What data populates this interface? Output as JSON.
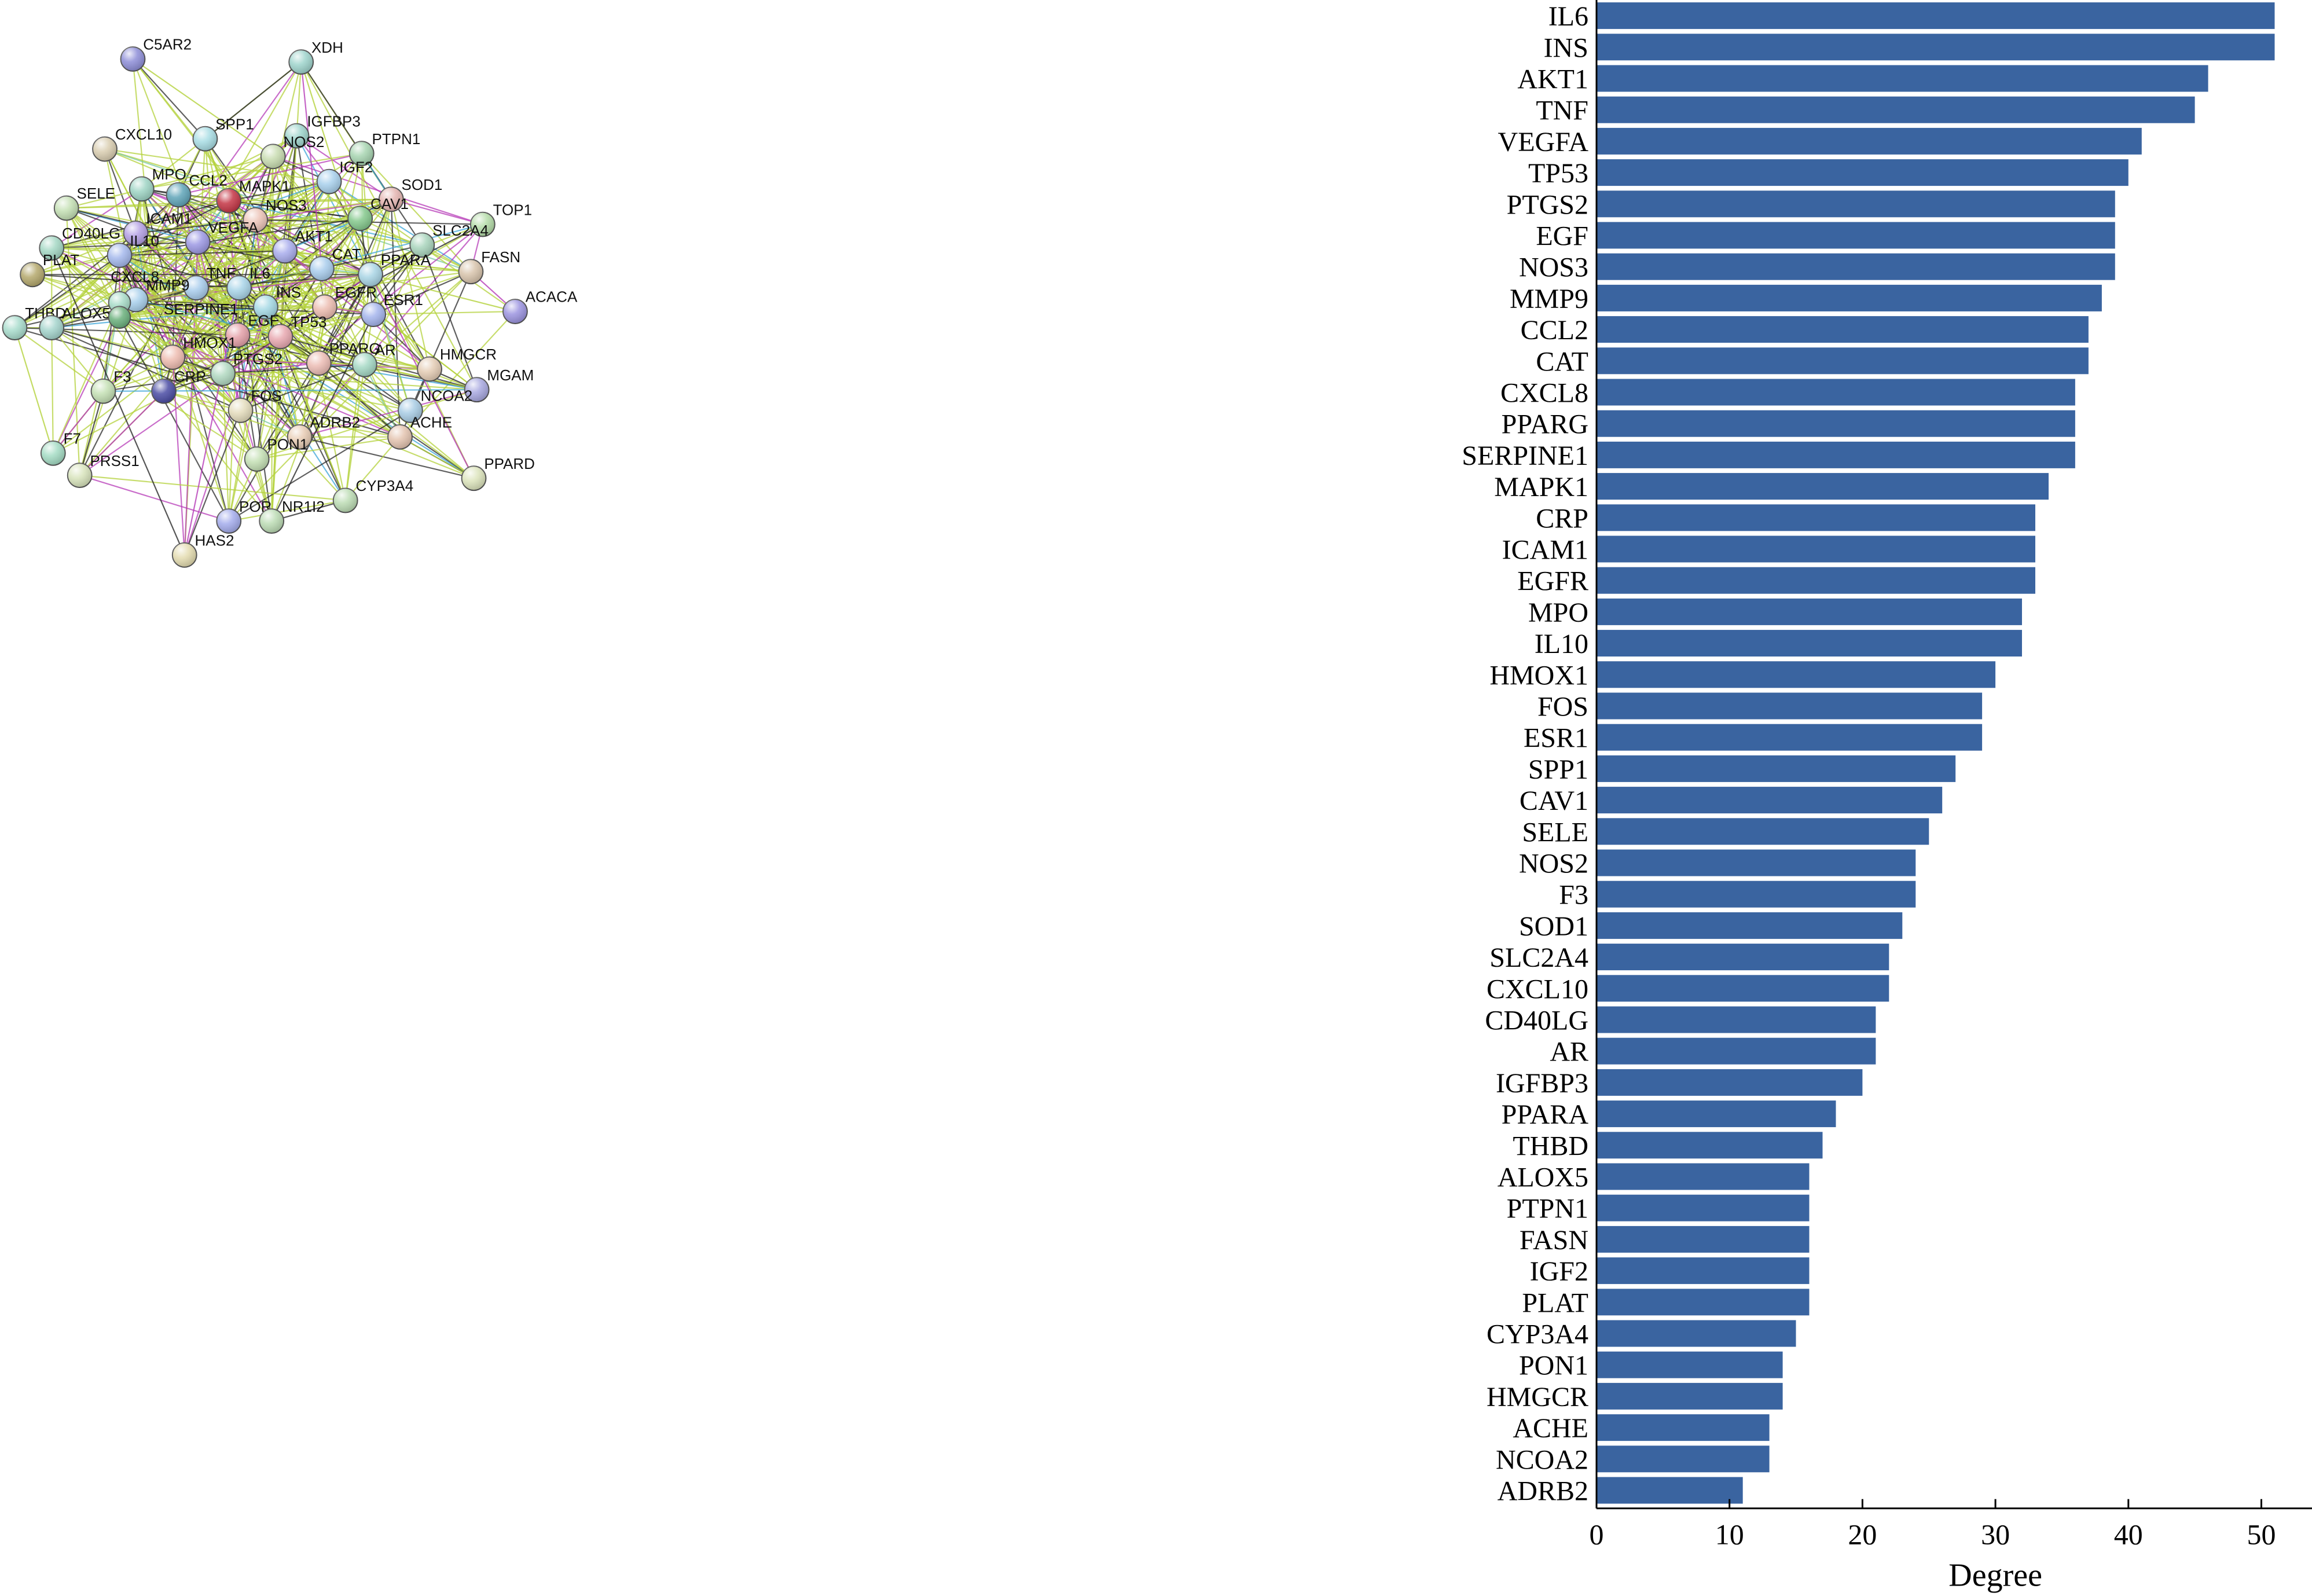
{
  "network": {
    "nodes": [
      {
        "id": "C5AR2",
        "color": "#8e8ed8"
      },
      {
        "id": "XDH",
        "color": "#9ed4cc"
      },
      {
        "id": "SPP1",
        "color": "#a8dde4"
      },
      {
        "id": "IGFBP3",
        "color": "#9ed4cc"
      },
      {
        "id": "CXCL10",
        "color": "#d9cdb0"
      },
      {
        "id": "NOS2",
        "color": "#c8dcb0"
      },
      {
        "id": "PTPN1",
        "color": "#a6d4b0"
      },
      {
        "id": "IGF2",
        "color": "#a8d0ec"
      },
      {
        "id": "MPO",
        "color": "#9ed4c4"
      },
      {
        "id": "CCL2",
        "color": "#5fa4b8"
      },
      {
        "id": "MAPK1",
        "color": "#c43545"
      },
      {
        "id": "SOD1",
        "color": "#e4b4b0"
      },
      {
        "id": "SELE",
        "color": "#c4e0b4"
      },
      {
        "id": "NOS3",
        "color": "#ecc4b8"
      },
      {
        "id": "CAV1",
        "color": "#84c88c"
      },
      {
        "id": "TOP1",
        "color": "#b4dca8"
      },
      {
        "id": "ICAM1",
        "color": "#b4a0e4"
      },
      {
        "id": "CD40LG",
        "color": "#a4d8c4"
      },
      {
        "id": "VEGFA",
        "color": "#9c98e4"
      },
      {
        "id": "IL10",
        "color": "#a4b8ec"
      },
      {
        "id": "AKT1",
        "color": "#a8acec"
      },
      {
        "id": "SLC2A4",
        "color": "#a8d4bc"
      },
      {
        "id": "PLAT",
        "color": "#b4a86c"
      },
      {
        "id": "CAT",
        "color": "#a8ccec"
      },
      {
        "id": "PPARA",
        "color": "#a8d4e4"
      },
      {
        "id": "FASN",
        "color": "#d8c4ac"
      },
      {
        "id": "TNF",
        "color": "#a8ccec"
      },
      {
        "id": "IL6",
        "color": "#a8d4e8"
      },
      {
        "id": "MMP9",
        "color": "#a8d0ec"
      },
      {
        "id": "INS",
        "color": "#a4d8e4"
      },
      {
        "id": "CXCL8",
        "color": "#a8dcc8"
      },
      {
        "id": "EGFR",
        "color": "#ecbcb0"
      },
      {
        "id": "ESR1",
        "color": "#a4b4ec"
      },
      {
        "id": "ACACA",
        "color": "#9c94e0"
      },
      {
        "id": "THBD",
        "color": "#a8dccc"
      },
      {
        "id": "ALOX5",
        "color": "#a4d4cc"
      },
      {
        "id": "SERPINE1",
        "color": "#6ab07c"
      },
      {
        "id": "EGF",
        "color": "#e4a0a8"
      },
      {
        "id": "TP53",
        "color": "#e8a8b0"
      },
      {
        "id": "HMOX1",
        "color": "#eebcb0"
      },
      {
        "id": "PPARG",
        "color": "#ecbcb4"
      },
      {
        "id": "AR",
        "color": "#a4d8c4"
      },
      {
        "id": "HMGCR",
        "color": "#e4ccb4"
      },
      {
        "id": "PTGS2",
        "color": "#b0d8c0"
      },
      {
        "id": "CRP",
        "color": "#4a4ca4"
      },
      {
        "id": "F3",
        "color": "#c4e0b4"
      },
      {
        "id": "MGAM",
        "color": "#a8a8e0"
      },
      {
        "id": "FOS",
        "color": "#e4dcbc"
      },
      {
        "id": "NCOA2",
        "color": "#a8cce4"
      },
      {
        "id": "ADRB2",
        "color": "#e8ccb4"
      },
      {
        "id": "ACHE",
        "color": "#e4c4b0"
      },
      {
        "id": "F7",
        "color": "#a4dcc4"
      },
      {
        "id": "PON1",
        "color": "#c4e0b4"
      },
      {
        "id": "PRSS1",
        "color": "#d8e4bc"
      },
      {
        "id": "PPARD",
        "color": "#dce4bc"
      },
      {
        "id": "CYP3A4",
        "color": "#bcdcb4"
      },
      {
        "id": "POR",
        "color": "#a4acec"
      },
      {
        "id": "NR1I2",
        "color": "#bcdcb4"
      },
      {
        "id": "HAS2",
        "color": "#e4dcb0"
      }
    ],
    "edge_colors": [
      "#b4d23c",
      "#2a2a2a",
      "#b73cb8",
      "#3ca6d8",
      "#7ac8a0",
      "#d8443c"
    ]
  },
  "chart_data": {
    "type": "bar",
    "orientation": "horizontal",
    "categories": [
      "IL6",
      "INS",
      "AKT1",
      "TNF",
      "VEGFA",
      "TP53",
      "PTGS2",
      "EGF",
      "NOS3",
      "MMP9",
      "CCL2",
      "CAT",
      "CXCL8",
      "PPARG",
      "SERPINE1",
      "MAPK1",
      "CRP",
      "ICAM1",
      "EGFR",
      "MPO",
      "IL10",
      "HMOX1",
      "FOS",
      "ESR1",
      "SPP1",
      "CAV1",
      "SELE",
      "NOS2",
      "F3",
      "SOD1",
      "SLC2A4",
      "CXCL10",
      "CD40LG",
      "AR",
      "IGFBP3",
      "PPARA",
      "THBD",
      "ALOX5",
      "PTPN1",
      "FASN",
      "IGF2",
      "PLAT",
      "CYP3A4",
      "PON1",
      "HMGCR",
      "ACHE",
      "NCOA2",
      "ADRB2"
    ],
    "values": [
      51,
      51,
      46,
      45,
      41,
      40,
      39,
      39,
      39,
      38,
      37,
      37,
      36,
      36,
      36,
      34,
      33,
      33,
      33,
      32,
      32,
      30,
      29,
      29,
      27,
      26,
      25,
      24,
      24,
      23,
      22,
      22,
      21,
      21,
      20,
      18,
      17,
      16,
      16,
      16,
      16,
      16,
      15,
      14,
      14,
      13,
      13,
      11
    ],
    "xlabel": "Degree",
    "ylabel": "",
    "title": "",
    "xlim": [
      0,
      54
    ],
    "xticks": [
      0,
      10,
      20,
      30,
      40,
      50
    ],
    "bar_color": "#3a64a0",
    "grid": false,
    "legend": "none"
  }
}
